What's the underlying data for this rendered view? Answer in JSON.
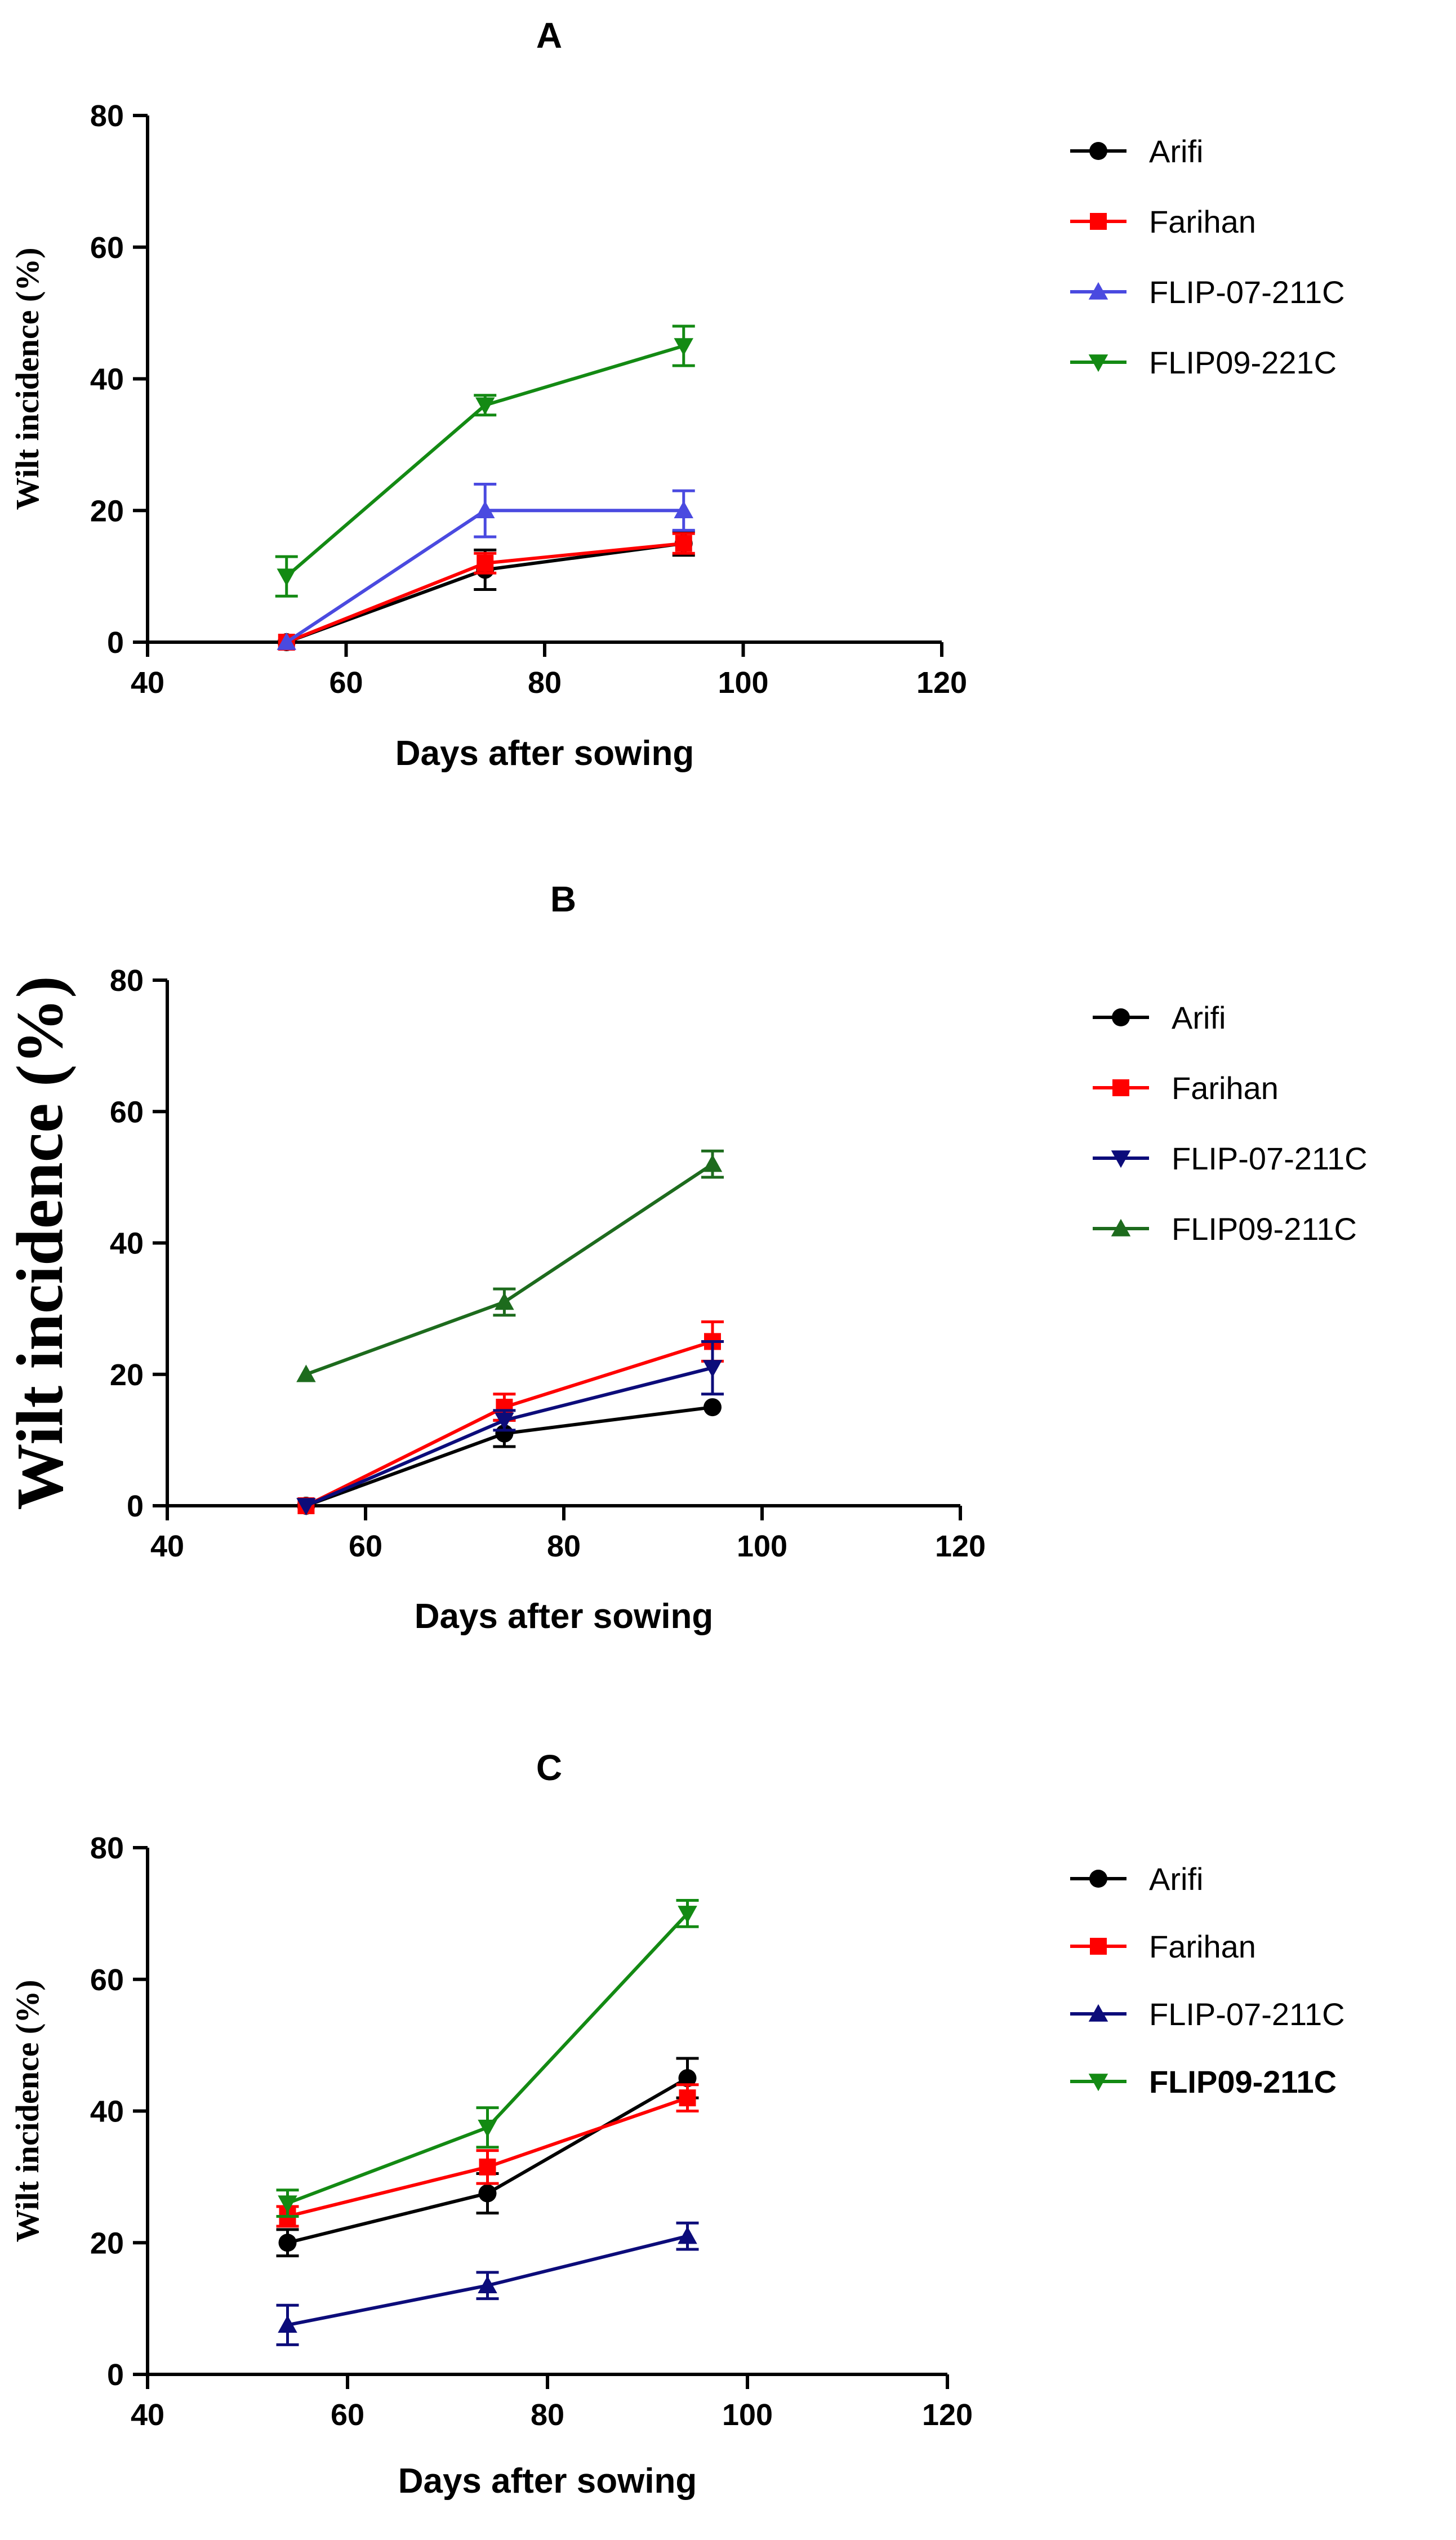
{
  "chart_data": [
    {
      "panel_id": "A",
      "type": "line",
      "title": "A",
      "xlabel": "Days after sowing",
      "ylabel": "Wilt incidence (%)",
      "ylabel_style": "serif-small",
      "xlim": [
        40,
        120
      ],
      "ylim": [
        0,
        80
      ],
      "xticks": [
        "40",
        "60",
        "80",
        "100",
        "120"
      ],
      "yticks": [
        "0",
        "20",
        "40",
        "60",
        "80"
      ],
      "grid": false,
      "legend_position": "top-right",
      "legend_bold_last": false,
      "series": [
        {
          "name": "Arifi",
          "color": "#000000",
          "marker": "circle",
          "x": [
            54,
            74,
            94
          ],
          "y": [
            0,
            11,
            15
          ],
          "err": [
            0.6,
            3,
            1.8
          ]
        },
        {
          "name": "Farihan",
          "color": "#ff0000",
          "marker": "square",
          "x": [
            54,
            74,
            94
          ],
          "y": [
            0,
            12,
            15
          ],
          "err": [
            0.6,
            1.5,
            1.5
          ]
        },
        {
          "name": "FLIP-07-211C",
          "color": "#4a4ae0",
          "marker": "triangle-up",
          "x": [
            54,
            74,
            94
          ],
          "y": [
            0,
            20,
            20
          ],
          "err": [
            0.6,
            4,
            3
          ]
        },
        {
          "name": "FLIP09-221C",
          "color": "#138a13",
          "marker": "triangle-down",
          "x": [
            54,
            74,
            94
          ],
          "y": [
            10,
            36,
            45
          ],
          "err": [
            3,
            1.5,
            3
          ]
        }
      ]
    },
    {
      "panel_id": "B",
      "type": "line",
      "title": "B",
      "xlabel": "Days after sowing",
      "ylabel": "Wilt incidence (%)",
      "ylabel_style": "serif-large",
      "xlim": [
        40,
        120
      ],
      "ylim": [
        0,
        80
      ],
      "xticks": [
        "40",
        "60",
        "80",
        "100",
        "120"
      ],
      "yticks": [
        "0",
        "20",
        "40",
        "60",
        "80"
      ],
      "grid": false,
      "legend_position": "top-right",
      "legend_bold_last": false,
      "series": [
        {
          "name": "Arifi",
          "color": "#000000",
          "marker": "circle",
          "x": [
            54,
            74,
            95
          ],
          "y": [
            0,
            11,
            15
          ],
          "err": [
            0.5,
            2,
            0.5
          ]
        },
        {
          "name": "Farihan",
          "color": "#ff0000",
          "marker": "square",
          "x": [
            54,
            74,
            95
          ],
          "y": [
            0,
            15,
            25
          ],
          "err": [
            0.5,
            2,
            3
          ]
        },
        {
          "name": "FLIP-07-211C",
          "color": "#0c0c7a",
          "marker": "triangle-down",
          "x": [
            54,
            74,
            95
          ],
          "y": [
            0,
            13,
            21
          ],
          "err": [
            0.5,
            1.5,
            4
          ]
        },
        {
          "name": "FLIP09-211C",
          "color": "#1d6b1d",
          "marker": "triangle-up",
          "x": [
            54,
            74,
            95
          ],
          "y": [
            20,
            31,
            52
          ],
          "err": [
            0.5,
            2,
            2
          ]
        }
      ]
    },
    {
      "panel_id": "C",
      "type": "line",
      "title": "C",
      "xlabel": "Days after sowing",
      "ylabel": "Wilt incidence (%)",
      "ylabel_style": "serif-small",
      "xlim": [
        40,
        120
      ],
      "ylim": [
        0,
        80
      ],
      "xticks": [
        "40",
        "60",
        "80",
        "100",
        "120"
      ],
      "yticks": [
        "0",
        "20",
        "40",
        "60",
        "80"
      ],
      "grid": false,
      "legend_position": "top-right",
      "legend_bold_last": true,
      "series": [
        {
          "name": "Arifi",
          "color": "#000000",
          "marker": "circle",
          "x": [
            54,
            74,
            94
          ],
          "y": [
            20,
            27.5,
            45
          ],
          "err": [
            2,
            3,
            3
          ]
        },
        {
          "name": "Farihan",
          "color": "#ff0000",
          "marker": "square",
          "x": [
            54,
            74,
            94
          ],
          "y": [
            24,
            31.5,
            42
          ],
          "err": [
            1.5,
            2.5,
            2
          ]
        },
        {
          "name": "FLIP-07-211C",
          "color": "#0c0c7a",
          "marker": "triangle-up",
          "x": [
            54,
            74,
            94
          ],
          "y": [
            7.5,
            13.5,
            21
          ],
          "err": [
            3,
            2,
            2
          ]
        },
        {
          "name": "FLIP09-211C",
          "color": "#138a13",
          "marker": "triangle-down",
          "x": [
            54,
            74,
            94
          ],
          "y": [
            26,
            37.5,
            70
          ],
          "err": [
            2,
            3,
            2
          ]
        }
      ]
    }
  ]
}
